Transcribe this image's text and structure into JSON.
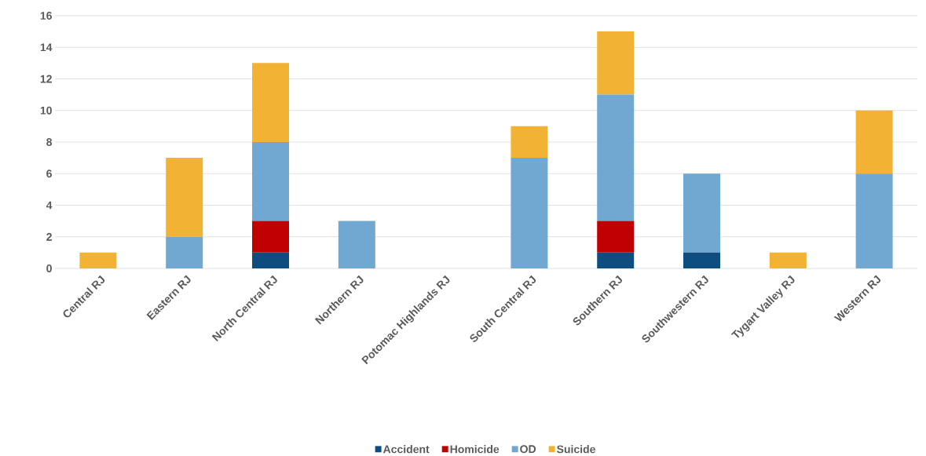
{
  "chart_data": {
    "type": "bar",
    "stacked": true,
    "categories": [
      "Central RJ",
      "Eastern RJ",
      "North Central RJ",
      "Northern RJ",
      "Potomac Highlands RJ",
      "South Central RJ",
      "Southern RJ",
      "Southwestern RJ",
      "Tygart Valley RJ",
      "Western RJ"
    ],
    "series": [
      {
        "name": "Accident",
        "color": "#0e4d80",
        "values": [
          0,
          0,
          1,
          0,
          0,
          0,
          1,
          1,
          0,
          0
        ]
      },
      {
        "name": "Homicide",
        "color": "#c00000",
        "values": [
          0,
          0,
          2,
          0,
          0,
          0,
          2,
          0,
          0,
          0
        ]
      },
      {
        "name": "OD",
        "color": "#70a8d2",
        "values": [
          0,
          2,
          5,
          3,
          0,
          7,
          8,
          5,
          0,
          6
        ]
      },
      {
        "name": "Suicide",
        "color": "#f2b233",
        "values": [
          1,
          5,
          5,
          0,
          0,
          2,
          4,
          0,
          1,
          4
        ]
      }
    ],
    "ylim": [
      0,
      16
    ],
    "yticks": [
      0,
      2,
      4,
      6,
      8,
      10,
      12,
      14,
      16
    ],
    "grid": "y",
    "legend": "bottom"
  }
}
